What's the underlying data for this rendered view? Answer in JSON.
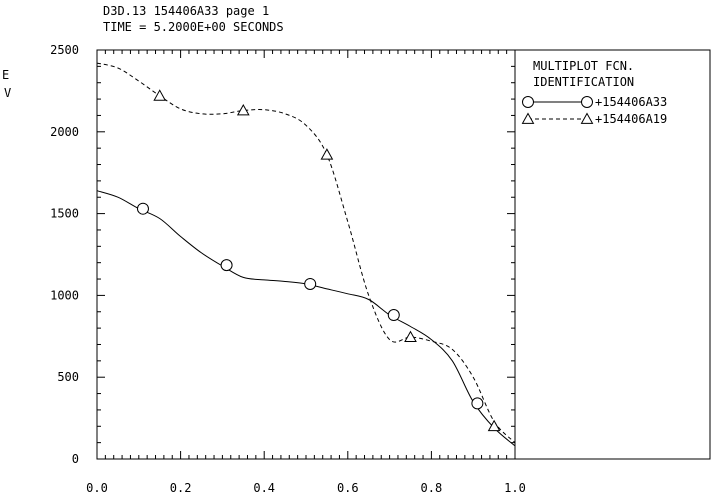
{
  "header": {
    "line1": "D3D.13 154406A33 page 1",
    "line2": "TIME = 5.2000E+00 SECONDS"
  },
  "chart_data": {
    "type": "line",
    "ylabel": "E V",
    "xlabel": "",
    "xlim": [
      0.0,
      1.0
    ],
    "ylim": [
      0,
      2500
    ],
    "x_tick_labels": [
      "0.0",
      "0.2",
      "0.4",
      "0.6",
      "0.8",
      "1.0"
    ],
    "y_tick_labels": [
      "0",
      "500",
      "1000",
      "1500",
      "2000",
      "2500"
    ],
    "legend": {
      "title_line1": "MULTIPLOT FCN.",
      "title_line2": "IDENTIFICATION",
      "placement": "right"
    },
    "series": [
      {
        "name": "+154406A33",
        "style": "solid",
        "marker": "circle",
        "color": "#000000",
        "x": [
          0.0,
          0.05,
          0.1,
          0.15,
          0.2,
          0.25,
          0.3,
          0.35,
          0.4,
          0.45,
          0.5,
          0.55,
          0.6,
          0.65,
          0.7,
          0.75,
          0.8,
          0.85,
          0.9,
          0.95,
          1.0
        ],
        "y": [
          1640,
          1600,
          1530,
          1470,
          1360,
          1260,
          1180,
          1110,
          1095,
          1085,
          1070,
          1040,
          1010,
          975,
          880,
          810,
          730,
          600,
          350,
          190,
          80
        ],
        "marker_x": [
          0.11,
          0.31,
          0.51,
          0.71,
          0.91
        ],
        "marker_y": [
          1530,
          1185,
          1070,
          880,
          340
        ]
      },
      {
        "name": "+154406A19",
        "style": "dashed",
        "marker": "triangle",
        "color": "#000000",
        "x": [
          0.0,
          0.05,
          0.1,
          0.15,
          0.2,
          0.25,
          0.3,
          0.35,
          0.4,
          0.45,
          0.5,
          0.55,
          0.6,
          0.65,
          0.7,
          0.75,
          0.8,
          0.85,
          0.9,
          0.95,
          1.0
        ],
        "y": [
          2420,
          2390,
          2310,
          2220,
          2140,
          2110,
          2110,
          2130,
          2135,
          2110,
          2040,
          1860,
          1450,
          1000,
          730,
          745,
          720,
          670,
          500,
          230,
          100
        ],
        "marker_x": [
          0.15,
          0.35,
          0.55,
          0.75,
          0.95
        ],
        "marker_y": [
          2220,
          2130,
          1860,
          745,
          200
        ]
      }
    ]
  }
}
